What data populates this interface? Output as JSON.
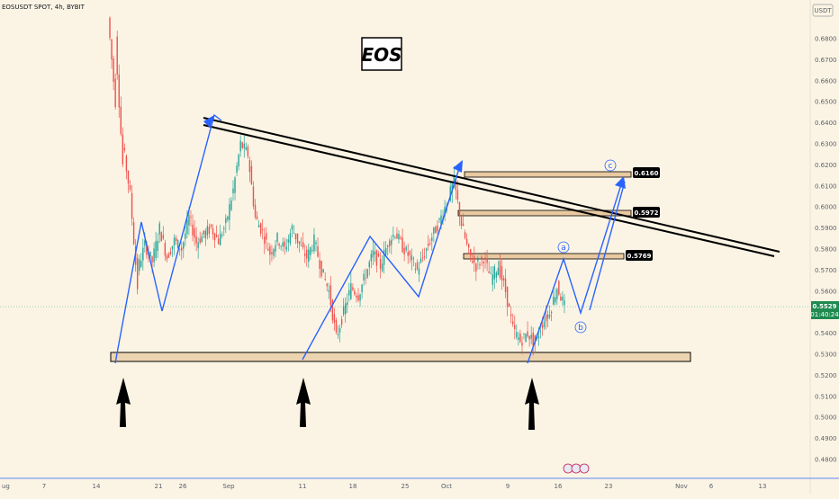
{
  "header": {
    "symbol": "EOSUSDT SPOT, 4h, BYBIT",
    "currency": "USDT"
  },
  "title_box": "EOS",
  "colors": {
    "up": "#26a69a",
    "down": "#ef5350",
    "wave": "#2962ff",
    "support": "#e8c9a0",
    "trend": "#000000",
    "price_badge": "#1e8a50"
  },
  "chart_data": {
    "type": "candlestick",
    "title": "EOS",
    "symbol": "EOSUSDT SPOT",
    "timeframe": "4h",
    "exchange": "BYBIT",
    "ylim": [
      0.475,
      0.69
    ],
    "y_ticks": [
      "0.6800",
      "0.6700",
      "0.6600",
      "0.6500",
      "0.6400",
      "0.6300",
      "0.6200",
      "0.6100",
      "0.6000",
      "0.5900",
      "0.5800",
      "0.5700",
      "0.5600",
      "0.5500",
      "0.5400",
      "0.5300",
      "0.5200",
      "0.5100",
      "0.5000",
      "0.4900",
      "0.4800"
    ],
    "x_ticks": [
      "ug",
      "7",
      "14",
      "21",
      "26",
      "Sep",
      "11",
      "18",
      "25",
      "Oct",
      "9",
      "16",
      "23",
      "Nov",
      "6",
      "13"
    ],
    "current_price": "0.5529",
    "countdown": "01:40:24",
    "price_levels": [
      "0.6160",
      "0.5972",
      "0.5769"
    ],
    "support_zone": [
      0.526,
      0.531
    ],
    "wave_labels": [
      "a",
      "b",
      "c"
    ],
    "price_path": [
      [
        0.69,
        0.65
      ],
      [
        0.68,
        0.62
      ],
      [
        0.63,
        0.606
      ],
      [
        0.606,
        0.562
      ],
      [
        0.57,
        0.582
      ],
      [
        0.582,
        0.574
      ],
      [
        0.574,
        0.59
      ],
      [
        0.59,
        0.576
      ],
      [
        0.576,
        0.584
      ],
      [
        0.584,
        0.58
      ],
      [
        0.58,
        0.595
      ],
      [
        0.595,
        0.583
      ],
      [
        0.583,
        0.587
      ],
      [
        0.587,
        0.59
      ],
      [
        0.59,
        0.584
      ],
      [
        0.584,
        0.592
      ],
      [
        0.592,
        0.608
      ],
      [
        0.608,
        0.63
      ],
      [
        0.63,
        0.625
      ],
      [
        0.625,
        0.595
      ],
      [
        0.595,
        0.588
      ],
      [
        0.588,
        0.578
      ],
      [
        0.578,
        0.585
      ],
      [
        0.585,
        0.58
      ],
      [
        0.58,
        0.59
      ],
      [
        0.59,
        0.582
      ],
      [
        0.582,
        0.576
      ],
      [
        0.576,
        0.584
      ],
      [
        0.584,
        0.57
      ],
      [
        0.57,
        0.56
      ],
      [
        0.56,
        0.538
      ],
      [
        0.538,
        0.55
      ],
      [
        0.55,
        0.562
      ],
      [
        0.562,
        0.558
      ],
      [
        0.558,
        0.568
      ],
      [
        0.568,
        0.578
      ],
      [
        0.578,
        0.572
      ],
      [
        0.572,
        0.583
      ],
      [
        0.583,
        0.588
      ],
      [
        0.588,
        0.581
      ],
      [
        0.581,
        0.576
      ],
      [
        0.576,
        0.57
      ],
      [
        0.57,
        0.578
      ],
      [
        0.578,
        0.586
      ],
      [
        0.586,
        0.593
      ],
      [
        0.593,
        0.602
      ],
      [
        0.602,
        0.612
      ],
      [
        0.612,
        0.592
      ],
      [
        0.592,
        0.578
      ],
      [
        0.578,
        0.572
      ],
      [
        0.572,
        0.576
      ],
      [
        0.576,
        0.566
      ],
      [
        0.566,
        0.572
      ],
      [
        0.572,
        0.56
      ],
      [
        0.56,
        0.542
      ],
      [
        0.542,
        0.536
      ],
      [
        0.536,
        0.54
      ],
      [
        0.54,
        0.535
      ],
      [
        0.535,
        0.545
      ],
      [
        0.545,
        0.55
      ],
      [
        0.55,
        0.562
      ],
      [
        0.562,
        0.5529
      ]
    ]
  }
}
